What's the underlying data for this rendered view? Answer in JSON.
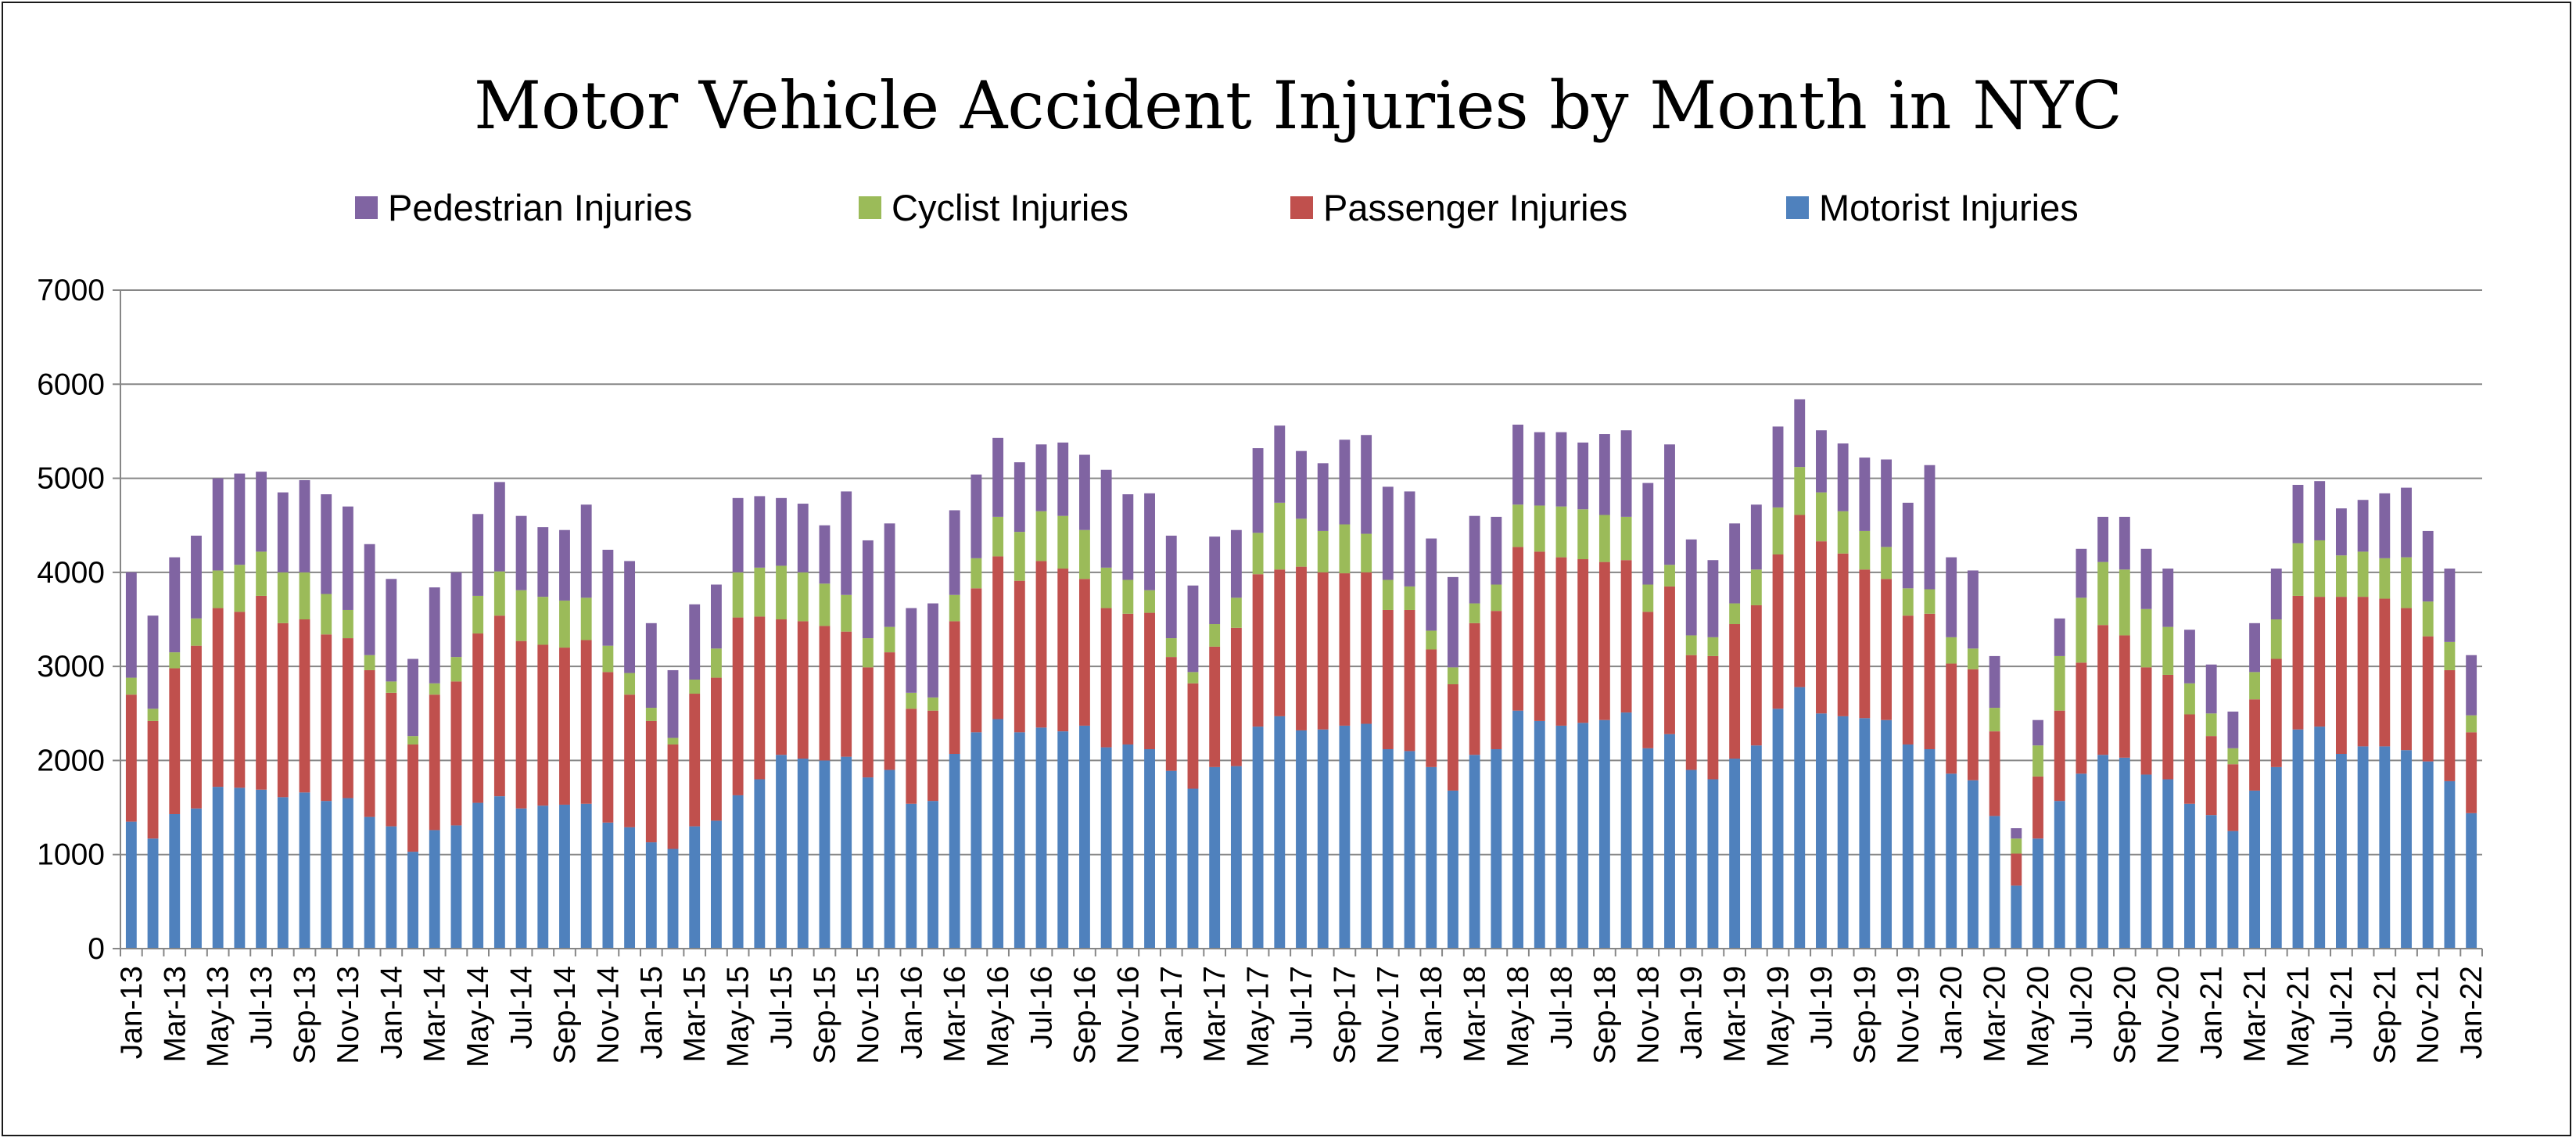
{
  "chart_data": {
    "type": "bar",
    "stacked": true,
    "title": "Motor Vehicle Accident Injuries by Month in NYC",
    "xlabel": "",
    "ylabel": "",
    "ylim": [
      0,
      7000
    ],
    "yticks": [
      0,
      1000,
      2000,
      3000,
      4000,
      5000,
      6000,
      7000
    ],
    "grid": true,
    "legend_position": "top",
    "categories": [
      "Jan-13",
      "Feb-13",
      "Mar-13",
      "Apr-13",
      "May-13",
      "Jun-13",
      "Jul-13",
      "Aug-13",
      "Sep-13",
      "Oct-13",
      "Nov-13",
      "Dec-13",
      "Jan-14",
      "Feb-14",
      "Mar-14",
      "Apr-14",
      "May-14",
      "Jun-14",
      "Jul-14",
      "Aug-14",
      "Sep-14",
      "Oct-14",
      "Nov-14",
      "Dec-14",
      "Jan-15",
      "Feb-15",
      "Mar-15",
      "Apr-15",
      "May-15",
      "Jun-15",
      "Jul-15",
      "Aug-15",
      "Sep-15",
      "Oct-15",
      "Nov-15",
      "Dec-15",
      "Jan-16",
      "Feb-16",
      "Mar-16",
      "Apr-16",
      "May-16",
      "Jun-16",
      "Jul-16",
      "Aug-16",
      "Sep-16",
      "Oct-16",
      "Nov-16",
      "Dec-16",
      "Jan-17",
      "Feb-17",
      "Mar-17",
      "Apr-17",
      "May-17",
      "Jun-17",
      "Jul-17",
      "Aug-17",
      "Sep-17",
      "Oct-17",
      "Nov-17",
      "Dec-17",
      "Jan-18",
      "Feb-18",
      "Mar-18",
      "Apr-18",
      "May-18",
      "Jun-18",
      "Jul-18",
      "Aug-18",
      "Sep-18",
      "Oct-18",
      "Nov-18",
      "Dec-18",
      "Jan-19",
      "Feb-19",
      "Mar-19",
      "Apr-19",
      "May-19",
      "Jun-19",
      "Jul-19",
      "Aug-19",
      "Sep-19",
      "Oct-19",
      "Nov-19",
      "Dec-19",
      "Jan-20",
      "Feb-20",
      "Mar-20",
      "Apr-20",
      "May-20",
      "Jun-20",
      "Jul-20",
      "Aug-20",
      "Sep-20",
      "Oct-20",
      "Nov-20",
      "Dec-20",
      "Jan-21",
      "Feb-21",
      "Mar-21",
      "Apr-21",
      "May-21",
      "Jun-21",
      "Jul-21",
      "Aug-21",
      "Sep-21",
      "Oct-21",
      "Nov-21",
      "Dec-21",
      "Jan-22"
    ],
    "x_tick_labels": [
      "Jan-13",
      "Mar-13",
      "May-13",
      "Jul-13",
      "Sep-13",
      "Nov-13",
      "Jan-14",
      "Mar-14",
      "May-14",
      "Jul-14",
      "Sep-14",
      "Nov-14",
      "Jan-15",
      "Mar-15",
      "May-15",
      "Jul-15",
      "Sep-15",
      "Nov-15",
      "Jan-16",
      "Mar-16",
      "May-16",
      "Jul-16",
      "Sep-16",
      "Nov-16",
      "Jan-17",
      "Mar-17",
      "May-17",
      "Jul-17",
      "Sep-17",
      "Nov-17",
      "Jan-18",
      "Mar-18",
      "May-18",
      "Jul-18",
      "Sep-18",
      "Nov-18",
      "Jan-19",
      "Mar-19",
      "May-19",
      "Jul-19",
      "Sep-19",
      "Nov-19",
      "Jan-20",
      "Mar-20",
      "May-20",
      "Jul-20",
      "Sep-20",
      "Nov-20",
      "Jan-21",
      "Mar-21",
      "May-21",
      "Jul-21",
      "Sep-21",
      "Nov-21",
      "Jan-22"
    ],
    "series": [
      {
        "name": "Motorist Injuries",
        "color": "#4F81BD",
        "values": [
          1350,
          1170,
          1430,
          1490,
          1720,
          1710,
          1690,
          1610,
          1660,
          1570,
          1600,
          1400,
          1300,
          1030,
          1260,
          1310,
          1550,
          1620,
          1490,
          1520,
          1530,
          1540,
          1340,
          1290,
          1130,
          1060,
          1300,
          1360,
          1630,
          1800,
          2060,
          2020,
          2000,
          2040,
          1820,
          1900,
          1540,
          1570,
          2070,
          2300,
          2440,
          2300,
          2350,
          2310,
          2370,
          2140,
          2170,
          2120,
          1890,
          1700,
          1930,
          1940,
          2360,
          2470,
          2320,
          2330,
          2370,
          2390,
          2120,
          2100,
          1930,
          1680,
          2060,
          2120,
          2530,
          2420,
          2370,
          2400,
          2430,
          2510,
          2130,
          2280,
          1900,
          1800,
          2020,
          2160,
          2550,
          2780,
          2500,
          2470,
          2450,
          2430,
          2170,
          2120,
          1860,
          1790,
          1410,
          670,
          1170,
          1570,
          1860,
          2060,
          2030,
          1850,
          1800,
          1540,
          1420,
          1250,
          1680,
          1930,
          2330,
          2360,
          2070,
          2150,
          2150,
          2110,
          1990,
          1780,
          1440
        ]
      },
      {
        "name": "Passenger Injuries",
        "color": "#C0504D",
        "values": [
          1350,
          1250,
          1550,
          1730,
          1900,
          1870,
          2060,
          1850,
          1840,
          1770,
          1700,
          1560,
          1420,
          1140,
          1440,
          1530,
          1800,
          1920,
          1780,
          1710,
          1670,
          1740,
          1600,
          1410,
          1290,
          1110,
          1410,
          1520,
          1890,
          1730,
          1440,
          1460,
          1430,
          1330,
          1170,
          1250,
          1010,
          960,
          1410,
          1530,
          1730,
          1610,
          1770,
          1730,
          1560,
          1480,
          1390,
          1450,
          1210,
          1120,
          1280,
          1470,
          1620,
          1560,
          1740,
          1670,
          1620,
          1610,
          1480,
          1500,
          1250,
          1130,
          1400,
          1470,
          1740,
          1800,
          1790,
          1740,
          1680,
          1620,
          1450,
          1570,
          1220,
          1310,
          1430,
          1490,
          1640,
          1830,
          1830,
          1730,
          1580,
          1500,
          1370,
          1440,
          1170,
          1180,
          900,
          340,
          660,
          960,
          1180,
          1380,
          1300,
          1140,
          1110,
          950,
          840,
          710,
          970,
          1150,
          1420,
          1380,
          1670,
          1590,
          1570,
          1510,
          1330,
          1180,
          860
        ]
      },
      {
        "name": "Cyclist Injuries",
        "color": "#9BBB59",
        "values": [
          180,
          130,
          170,
          290,
          400,
          500,
          470,
          540,
          500,
          430,
          300,
          160,
          120,
          90,
          120,
          260,
          400,
          470,
          540,
          510,
          500,
          450,
          280,
          230,
          140,
          70,
          150,
          310,
          480,
          520,
          570,
          520,
          450,
          390,
          310,
          270,
          170,
          140,
          280,
          320,
          420,
          520,
          530,
          560,
          520,
          430,
          360,
          240,
          200,
          120,
          240,
          320,
          440,
          710,
          510,
          440,
          520,
          410,
          320,
          250,
          200,
          180,
          210,
          280,
          450,
          490,
          540,
          530,
          500,
          460,
          290,
          230,
          210,
          200,
          220,
          380,
          500,
          510,
          520,
          450,
          410,
          340,
          290,
          260,
          280,
          220,
          250,
          160,
          330,
          580,
          690,
          670,
          700,
          620,
          510,
          330,
          240,
          170,
          290,
          420,
          560,
          600,
          440,
          480,
          430,
          540,
          370,
          300,
          180
        ]
      },
      {
        "name": "Pedestrian Injuries",
        "color": "#8064A2",
        "values": [
          1120,
          990,
          1010,
          880,
          980,
          970,
          850,
          850,
          980,
          1060,
          1100,
          1180,
          1090,
          820,
          1020,
          900,
          870,
          950,
          790,
          740,
          750,
          990,
          1020,
          1190,
          900,
          720,
          800,
          680,
          790,
          760,
          720,
          730,
          620,
          1100,
          1040,
          1100,
          900,
          1000,
          900,
          890,
          840,
          740,
          710,
          780,
          800,
          1040,
          910,
          1030,
          1090,
          920,
          930,
          720,
          900,
          820,
          720,
          720,
          900,
          1050,
          990,
          1010,
          980,
          960,
          930,
          720,
          850,
          780,
          790,
          710,
          860,
          920,
          1080,
          1280,
          1020,
          820,
          850,
          690,
          860,
          720,
          660,
          720,
          780,
          930,
          910,
          1320,
          850,
          830,
          550,
          110,
          270,
          400,
          520,
          480,
          560,
          640,
          620,
          570,
          520,
          390,
          520,
          540,
          620,
          630,
          500,
          550,
          690,
          740,
          750,
          780,
          640
        ]
      }
    ]
  },
  "legend_order": [
    "Pedestrian Injuries",
    "Cyclist Injuries",
    "Passenger Injuries",
    "Motorist Injuries"
  ]
}
